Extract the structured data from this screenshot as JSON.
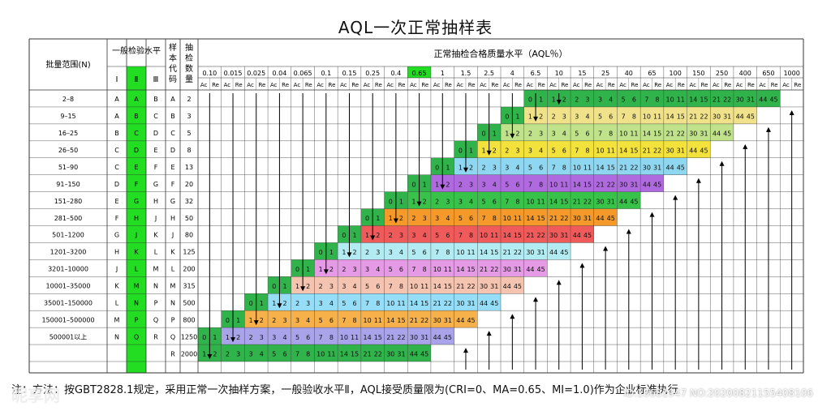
{
  "title": "AQL一次正常抽样表",
  "headers": {
    "batch_range": "批量范围(N)",
    "general_level": "一般检验水平",
    "levels": [
      "Ⅰ",
      "Ⅱ",
      "Ⅲ"
    ],
    "sample_code": "样本代码",
    "sample_size": "抽检数量",
    "aql_title": "正常抽检合格质量水平（AQL％）",
    "ac": "Ac",
    "re": "Re"
  },
  "aql_values": [
    "0.10",
    "0.015",
    "0.025",
    "0.04",
    "0.065",
    "0.1",
    "0.15",
    "0.25",
    "0.4",
    "0.65",
    "1",
    "1.5",
    "2.5",
    "4",
    "6.5",
    "10",
    "15",
    "25",
    "40",
    "65",
    "100",
    "150",
    "250",
    "400",
    "650",
    "1000"
  ],
  "highlight_aql_index": 9,
  "rows": [
    {
      "range": "2–8",
      "l1": "A",
      "l2": "A",
      "l3": "B",
      "code": "A",
      "size": "2"
    },
    {
      "range": "9–15",
      "l1": "A",
      "l2": "B",
      "l3": "C",
      "code": "B",
      "size": "3"
    },
    {
      "range": "16–25",
      "l1": "B",
      "l2": "C",
      "l3": "D",
      "code": "C",
      "size": "5"
    },
    {
      "range": "26–50",
      "l1": "C",
      "l2": "D",
      "l3": "E",
      "code": "D",
      "size": "8"
    },
    {
      "range": "51–90",
      "l1": "C",
      "l2": "E",
      "l3": "F",
      "code": "E",
      "size": "13"
    },
    {
      "range": "91–150",
      "l1": "D",
      "l2": "F",
      "l3": "G",
      "code": "F",
      "size": "20"
    },
    {
      "range": "151–280",
      "l1": "E",
      "l2": "G",
      "l3": "H",
      "code": "G",
      "size": "32"
    },
    {
      "range": "281–500",
      "l1": "F",
      "l2": "H",
      "l3": "J",
      "code": "H",
      "size": "50"
    },
    {
      "range": "501–1200",
      "l1": "G",
      "l2": "J",
      "l3": "K",
      "code": "J",
      "size": "80"
    },
    {
      "range": "1201–3200",
      "l1": "H",
      "l2": "K",
      "l3": "L",
      "code": "K",
      "size": "125"
    },
    {
      "range": "3201–10000",
      "l1": "J",
      "l2": "L",
      "l3": "M",
      "code": "L",
      "size": "200"
    },
    {
      "range": "10001–35000",
      "l1": "K",
      "l2": "M",
      "l3": "N",
      "code": "M",
      "size": "315"
    },
    {
      "range": "35001–150000",
      "l1": "L",
      "l2": "N",
      "l3": "P",
      "code": "N",
      "size": "500"
    },
    {
      "range": "150001–500000",
      "l1": "M",
      "l2": "P",
      "l3": "Q",
      "code": "P",
      "size": "800"
    },
    {
      "range": "500001以上",
      "l1": "N",
      "l2": "Q",
      "l3": "R",
      "code": "Q",
      "size": "1250"
    },
    {
      "range": "",
      "l1": "",
      "l2": "",
      "l3": "",
      "code": "R",
      "size": "2000"
    }
  ],
  "ac_re_pairs": [
    [
      0,
      1
    ],
    [
      1,
      2
    ],
    [
      2,
      3
    ],
    [
      3,
      4
    ],
    [
      5,
      6
    ],
    [
      7,
      8
    ],
    [
      10,
      11
    ],
    [
      14,
      15
    ],
    [
      21,
      22
    ],
    [
      30,
      31
    ],
    [
      44,
      45
    ]
  ],
  "band_colors": [
    "#2fb34a",
    "#f0e28a",
    "#bfe28a",
    "#f4e23c",
    "#8fd6f0",
    "#b06ae0",
    "#39c24a",
    "#f59a2a",
    "#ef5b5b",
    "#b2ecf2",
    "#e59ae6",
    "#f5c4b0",
    "#96def7",
    "#f7b14a",
    "#a9a4ea"
  ],
  "colors": {
    "green_col": "#22dd22",
    "border": "#333333",
    "arrow": "#000000"
  },
  "footer": "注：方法：按GBT2828.1规定，采用正常一次抽样方案，一般验收水平Ⅱ，AQL接受质量限为(CRI=0、MA=0.65、MI=1.0)作为企业标准执行",
  "watermark": "昵享网",
  "watermark_id": "ID:18681947 NO:20200821155408106"
}
